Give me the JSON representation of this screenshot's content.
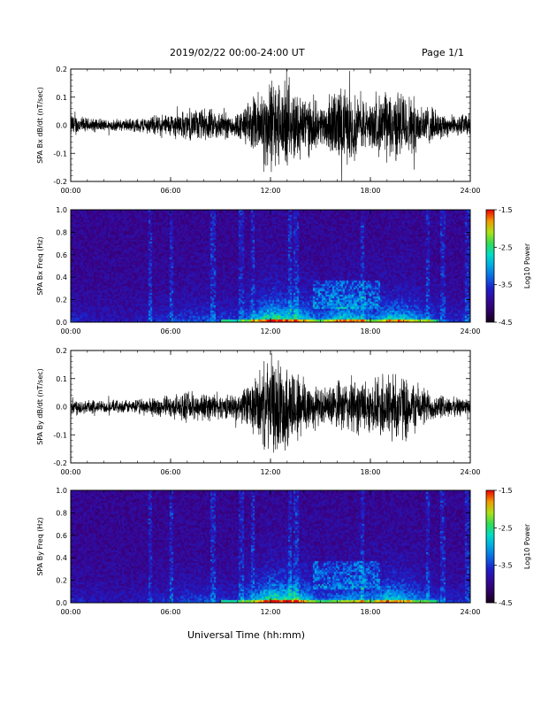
{
  "header": {
    "title": "2019/02/22  00:00-24:00 UT",
    "page": "Page 1/1"
  },
  "footer": {
    "xlabel": "Universal Time (hh:mm)"
  },
  "chart_data": [
    {
      "type": "line",
      "ylabel": "SPA Bx dB/dt (nT/sec)",
      "xlim_hours": [
        0,
        24
      ],
      "ylim": [
        -0.2,
        0.2
      ],
      "x_ticks": [
        "00:00",
        "06:00",
        "12:00",
        "18:00",
        "24:00"
      ],
      "y_ticks": [
        "-0.2",
        "-0.1",
        "0.0",
        "0.1",
        "0.2"
      ],
      "envelope": {
        "hours": [
          0,
          1,
          2,
          3,
          4,
          5,
          6,
          7,
          8,
          9,
          10,
          11,
          12,
          13,
          14,
          15,
          16,
          17,
          18,
          19,
          20,
          21,
          22,
          23,
          24
        ],
        "amplitude": [
          0.05,
          0.03,
          0.025,
          0.025,
          0.03,
          0.04,
          0.05,
          0.06,
          0.07,
          0.06,
          0.05,
          0.12,
          0.2,
          0.16,
          0.14,
          0.08,
          0.16,
          0.14,
          0.09,
          0.15,
          0.14,
          0.1,
          0.06,
          0.04,
          0.05
        ]
      }
    },
    {
      "type": "heatmap",
      "ylabel": "SPA Bx Freq (Hz)",
      "xlim_hours": [
        0,
        24
      ],
      "ylim": [
        0,
        1
      ],
      "x_ticks": [
        "00:00",
        "06:00",
        "12:00",
        "18:00",
        "24:00"
      ],
      "y_ticks": [
        "0.0",
        "0.2",
        "0.4",
        "0.6",
        "0.8",
        "1.0"
      ],
      "colorbar": {
        "label": "Log10 Power",
        "range": [
          -4.5,
          -1.5
        ],
        "ticks": [
          "-1.5",
          "-2.5",
          "-3.5",
          "-4.5"
        ]
      }
    },
    {
      "type": "line",
      "ylabel": "SPA By dB/dt (nT/sec)",
      "xlim_hours": [
        0,
        24
      ],
      "ylim": [
        -0.2,
        0.2
      ],
      "x_ticks": [
        "00:00",
        "06:00",
        "12:00",
        "18:00",
        "24:00"
      ],
      "y_ticks": [
        "-0.2",
        "-0.1",
        "0.0",
        "0.1",
        "0.2"
      ],
      "envelope": {
        "hours": [
          0,
          1,
          2,
          3,
          4,
          5,
          6,
          7,
          8,
          9,
          10,
          11,
          12,
          13,
          14,
          15,
          16,
          17,
          18,
          19,
          20,
          21,
          22,
          23,
          24
        ],
        "amplitude": [
          0.04,
          0.03,
          0.025,
          0.025,
          0.03,
          0.04,
          0.045,
          0.06,
          0.06,
          0.05,
          0.05,
          0.12,
          0.2,
          0.18,
          0.14,
          0.07,
          0.1,
          0.12,
          0.1,
          0.16,
          0.13,
          0.09,
          0.05,
          0.04,
          0.04
        ]
      }
    },
    {
      "type": "heatmap",
      "ylabel": "SPA By Freq (Hz)",
      "xlim_hours": [
        0,
        24
      ],
      "ylim": [
        0,
        1
      ],
      "x_ticks": [
        "00:00",
        "06:00",
        "12:00",
        "18:00",
        "24:00"
      ],
      "y_ticks": [
        "0.0",
        "0.2",
        "0.4",
        "0.6",
        "0.8",
        "1.0"
      ],
      "colorbar": {
        "label": "Log10 Power",
        "range": [
          -4.5,
          -1.5
        ],
        "ticks": [
          "-1.5",
          "-2.5",
          "-3.5",
          "-4.5"
        ]
      }
    }
  ]
}
